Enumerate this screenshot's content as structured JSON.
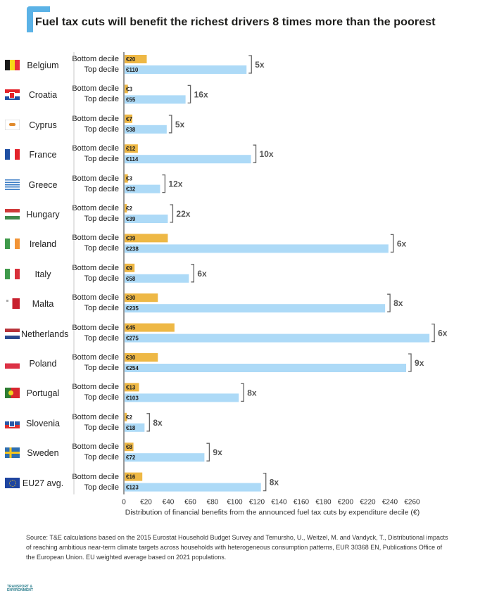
{
  "title": "Fuel tax cuts will benefit the richest drivers 8 times more than the poorest",
  "row_labels": {
    "bottom": "Bottom decile",
    "top": "Top decile"
  },
  "colors": {
    "bottom": "#eeb845",
    "top": "#addaf7",
    "accent": "#5bb2e6",
    "bracket": "#666666"
  },
  "chart_data": {
    "type": "bar",
    "orientation": "horizontal",
    "categories": [
      "Belgium",
      "Croatia",
      "Cyprus",
      "France",
      "Greece",
      "Hungary",
      "Ireland",
      "Italy",
      "Malta",
      "Netherlands",
      "Poland",
      "Portugal",
      "Slovenia",
      "Sweden",
      "EU27 avg."
    ],
    "series": [
      {
        "name": "Bottom decile",
        "values": [
          20,
          3,
          7,
          12,
          3,
          2,
          39,
          9,
          30,
          45,
          30,
          13,
          2,
          8,
          16
        ],
        "labels": [
          "€20",
          "€3",
          "€7",
          "€12",
          "€3",
          "€2",
          "€39",
          "€9",
          "€30",
          "€45",
          "€30",
          "€13",
          "€2",
          "€8",
          "€16"
        ]
      },
      {
        "name": "Top decile",
        "values": [
          110,
          55,
          38,
          114,
          32,
          39,
          238,
          58,
          235,
          275,
          254,
          103,
          18,
          72,
          123
        ],
        "labels": [
          "€110",
          "€55",
          "€38",
          "€114",
          "€32",
          "€39",
          "€238",
          "€58",
          "€235",
          "€275",
          "€254",
          "€103",
          "€18",
          "€72",
          "€123"
        ]
      }
    ],
    "ratios": [
      "5x",
      "16x",
      "5x",
      "10x",
      "12x",
      "22x",
      "6x",
      "6x",
      "8x",
      "6x",
      "9x",
      "8x",
      "8x",
      "9x",
      "8x"
    ],
    "xlabel": "Distribution of financial benefits from the announced fuel tax cuts by expenditure decile (€)",
    "xticks": [
      "0",
      "€20",
      "€40",
      "€60",
      "€80",
      "€100",
      "€120",
      "€140",
      "€160",
      "€180",
      "€200",
      "€220",
      "€240",
      "€260"
    ],
    "xlim": [
      0,
      280
    ],
    "grid": false
  },
  "flags": [
    {
      "type": "v",
      "colors": [
        "#1a1a1a",
        "#f7d917",
        "#e8303a"
      ]
    },
    {
      "type": "h",
      "colors": [
        "#e3232b",
        "#ffffff",
        "#1f4fa3"
      ],
      "emblem": "checker"
    },
    {
      "type": "plain",
      "colors": [
        "#ffffff"
      ],
      "emblem": "cyprus"
    },
    {
      "type": "v",
      "colors": [
        "#1f4fa3",
        "#ffffff",
        "#e3232b"
      ]
    },
    {
      "type": "stripes",
      "colors": [
        "#3d7ec6",
        "#ffffff"
      ]
    },
    {
      "type": "h",
      "colors": [
        "#cf3a3a",
        "#ffffff",
        "#3f8a4b"
      ]
    },
    {
      "type": "v",
      "colors": [
        "#3f9a4b",
        "#ffffff",
        "#f29437"
      ]
    },
    {
      "type": "v",
      "colors": [
        "#3f9a4b",
        "#ffffff",
        "#d8303a"
      ]
    },
    {
      "type": "v2",
      "colors": [
        "#ffffff",
        "#c8202e"
      ],
      "emblem": "cross"
    },
    {
      "type": "h",
      "colors": [
        "#b8343b",
        "#ffffff",
        "#2a4a8e"
      ]
    },
    {
      "type": "h2",
      "colors": [
        "#ffffff",
        "#dc3246"
      ]
    },
    {
      "type": "portugal",
      "colors": [
        "#2e7d32",
        "#d8262f"
      ]
    },
    {
      "type": "h",
      "colors": [
        "#ffffff",
        "#2a59a8",
        "#dd3030"
      ],
      "emblem": "shield"
    },
    {
      "type": "sweden",
      "colors": [
        "#2f6fb0",
        "#f4c520"
      ]
    },
    {
      "type": "eu",
      "colors": [
        "#1f45a0",
        "#f2c81e"
      ]
    }
  ],
  "source": "Source: T&E calculations based on the 2015 Eurostat Household Budget Survey and Temursho, U., Weitzel, M. and Vandyck, T., Distributional impacts of reaching ambitious near-term climate targets across households with heterogeneous consumption patterns, EUR 30368 EN, Publications Office of the European Union. EU weighted average based on 2021 populations.",
  "logo": {
    "line1": "TRANSPORT &",
    "line2": "ENVIRONMENT"
  }
}
